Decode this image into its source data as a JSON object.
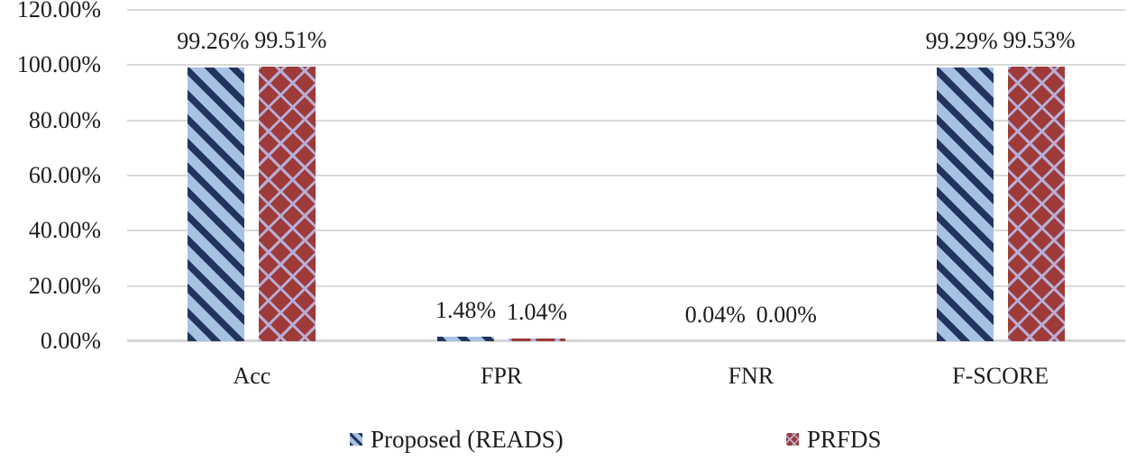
{
  "chart_data": {
    "type": "bar",
    "title": "",
    "xlabel": "",
    "ylabel": "",
    "categories": [
      "Acc",
      "FPR",
      "FNR",
      "F-SCORE"
    ],
    "series": [
      {
        "name": "Proposed (READS)",
        "values": [
          99.26,
          1.48,
          0.04,
          99.29
        ],
        "labels": [
          "99.26%",
          "1.48%",
          "0.04%",
          "99.29%"
        ],
        "fill_color": "#a6c2e3",
        "pattern_color": "#23335f",
        "pattern": "diagonal-stripe"
      },
      {
        "name": "PRFDS",
        "values": [
          99.51,
          1.04,
          0.0,
          99.53
        ],
        "labels": [
          "99.51%",
          "1.04%",
          "0.00%",
          "99.53%"
        ],
        "fill_color": "#9e3b38",
        "pattern_color": "#b7aed9",
        "pattern": "diagonal-lattice"
      }
    ],
    "yticks": [
      {
        "value": 0,
        "label": "0.00%"
      },
      {
        "value": 20,
        "label": "20.00%"
      },
      {
        "value": 40,
        "label": "40.00%"
      },
      {
        "value": 60,
        "label": "60.00%"
      },
      {
        "value": 80,
        "label": "80.00%"
      },
      {
        "value": 100,
        "label": "100.00%"
      },
      {
        "value": 120,
        "label": "120.00%"
      }
    ],
    "ylim": [
      0,
      120
    ],
    "grid": true,
    "gridline_color": "#d9d9d9",
    "text_color": "#1c1c1c",
    "legend_position": "bottom"
  }
}
